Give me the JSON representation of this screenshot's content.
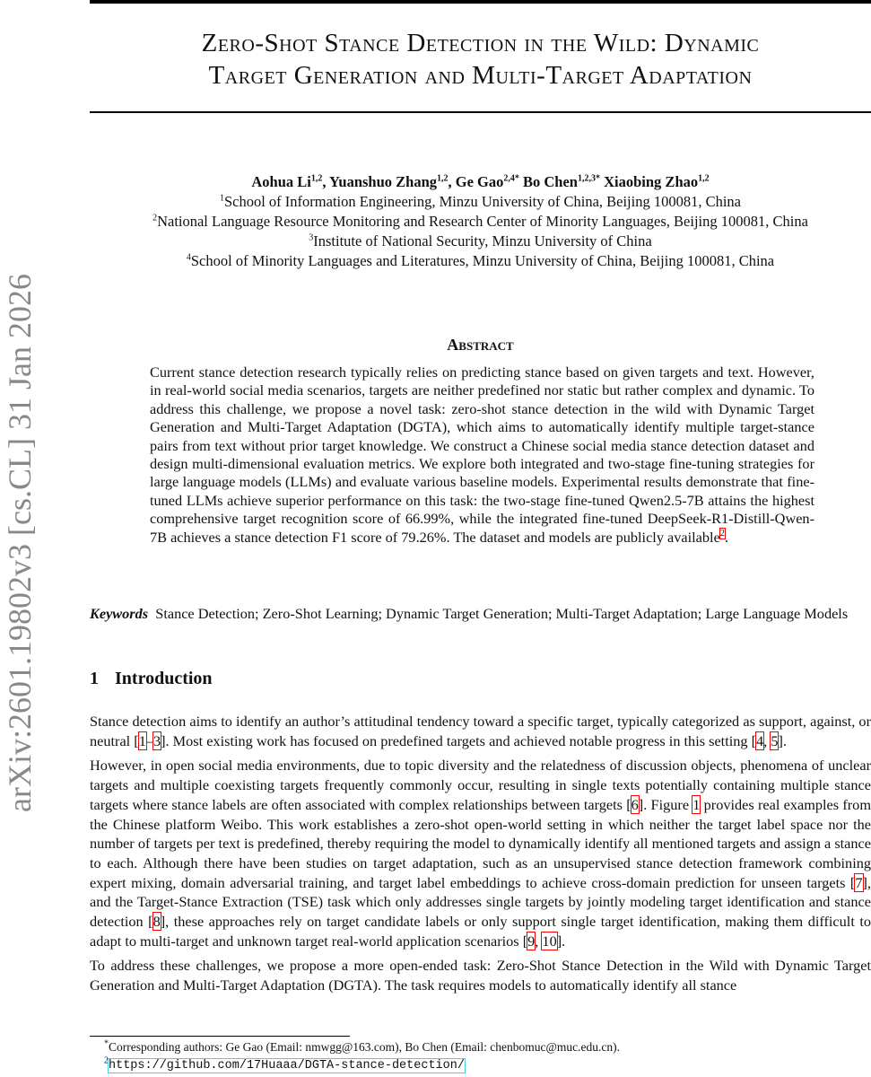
{
  "arxiv_id": "arXiv:2601.19802v3  [cs.CL]  31 Jan 2026",
  "title": [
    "Zero-Shot Stance Detection in the Wild: Dynamic",
    "Target Generation and Multi-Target Adaptation"
  ],
  "authors": [
    {
      "name": "Aohua Li",
      "aff": "1,2"
    },
    {
      "name": "Yuanshuo Zhang",
      "aff": "1,2"
    },
    {
      "name": "Ge Gao",
      "aff": "2,4*"
    },
    {
      "name": "Bo Chen",
      "aff": "1,2,3*"
    },
    {
      "name": "Xiaobing Zhao",
      "aff": "1,2"
    }
  ],
  "affiliations": [
    {
      "n": "1",
      "text": "School of Information Engineering, Minzu University of China, Beijing 100081, China"
    },
    {
      "n": "2",
      "text": "National Language Resource Monitoring and Research Center of Minority Languages, Beijing 100081, China"
    },
    {
      "n": "3",
      "text": "Institute of National Security, Minzu University of China"
    },
    {
      "n": "4",
      "text": "School of Minority Languages and Literatures, Minzu University of China, Beijing 100081, China"
    }
  ],
  "abstract": {
    "heading": "Abstract",
    "text": "Current stance detection research typically relies on predicting stance based on given targets and text. However, in real-world social media scenarios, targets are neither predefined nor static but rather complex and dynamic. To address this challenge, we propose a novel task: zero-shot stance detection in the wild with Dynamic Target Generation and Multi-Target Adaptation (DGTA), which aims to automatically identify multiple target-stance pairs from text without prior target knowledge. We construct a Chinese social media stance detection dataset and design multi-dimensional evaluation metrics. We explore both integrated and two-stage fine-tuning strategies for large language models (LLMs) and evaluate various baseline models. Experimental results demonstrate that fine-tuned LLMs achieve superior performance on this task: the two-stage fine-tuned Qwen2.5-7B attains the highest comprehensive target recognition score of 66.99%, while the integrated fine-tuned DeepSeek-R1-Distill-Qwen-7B achieves a stance detection F1 score of 79.26%. The dataset and models are publicly available",
    "fn_mark": "2",
    "end": "."
  },
  "keywords": {
    "label": "Keywords",
    "text": "Stance Detection; Zero-Shot Learning; Dynamic Target Generation; Multi-Target Adaptation; Large Language Models"
  },
  "section": {
    "num": "1",
    "title": "Introduction"
  },
  "paragraphs": [
    [
      {
        "t": "Stance detection aims to identify an author’s attitudinal tendency toward a specific target, typically categorized as support, against, or neutral ["
      },
      {
        "c": "1"
      },
      {
        "t": "–"
      },
      {
        "c": "3"
      },
      {
        "t": "]. Most existing work has focused on predefined targets and achieved notable progress in this setting ["
      },
      {
        "c": "4"
      },
      {
        "t": ", "
      },
      {
        "c": "5"
      },
      {
        "t": "]."
      }
    ],
    [
      {
        "t": "However, in open social media environments, due to topic diversity and the relatedness of discussion objects, phenomena of unclear targets and multiple coexisting targets frequently commonly occur, resulting in single texts potentially containing multiple stance targets where stance labels are often associated with complex relationships between targets ["
      },
      {
        "c": "6"
      },
      {
        "t": "]. Figure "
      },
      {
        "c": "1"
      },
      {
        "t": " provides real examples from the Chinese platform Weibo. This work establishes a zero-shot open-world setting in which neither the target label space nor the number of targets per text is predefined, thereby requiring the model to dynamically identify all mentioned targets and assign a stance to each. Although there have been studies on target adaptation, such as an unsupervised stance detection framework combining expert mixing, domain adversarial training, and target label embeddings to achieve cross-domain prediction for unseen targets ["
      },
      {
        "c": "7"
      },
      {
        "t": "], and the Target-Stance Extraction (TSE) task which only addresses single targets by jointly modeling target identification and stance detection ["
      },
      {
        "c": "8"
      },
      {
        "t": "], these approaches rely on target candidate labels or only support single target identification, making them difficult to adapt to multi-target and unknown target real-world application scenarios ["
      },
      {
        "c": "9"
      },
      {
        "t": ", "
      },
      {
        "c": "10"
      },
      {
        "t": "]."
      }
    ],
    [
      {
        "t": "To address these challenges, we propose a more open-ended task: Zero-Shot Stance Detection in the Wild with Dynamic Target Generation and Multi-Target Adaptation (DGTA). The task requires models to automatically identify all stance"
      }
    ]
  ],
  "footnotes": [
    {
      "mark": "*",
      "text": "Corresponding authors: Ge Gao (Email: nmwgg@163.com), Bo Chen (Email: chenbomuc@muc.edu.cn)."
    },
    {
      "mark": "2",
      "url": "https://github.com/17Huaaa/DGTA-stance-detection/"
    }
  ]
}
